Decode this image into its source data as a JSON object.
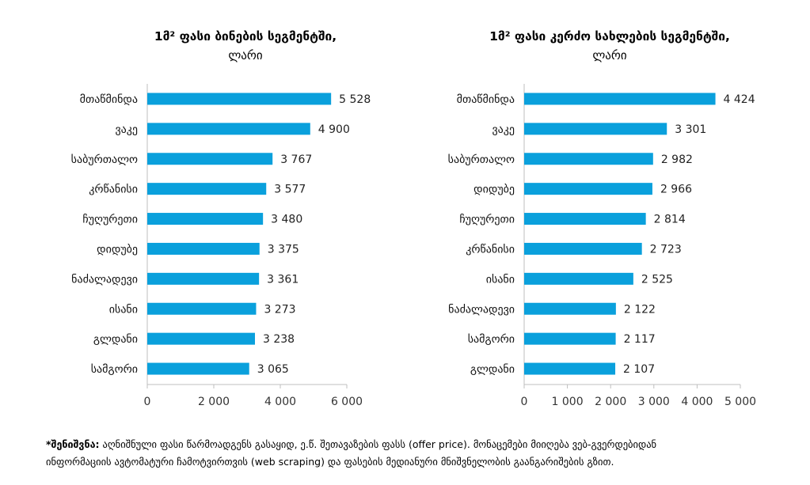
{
  "note": {
    "label": "*შენიშვნა:",
    "text_line1": "აღნიშნული ფასი წარმოადგენს გასაყიდ, ე.წ. შეთავაზების ფასს (offer price). მონაცემები მიიღება ვებ-გვერდებიდან",
    "text_line2": "ინფორმაციის ავტომატური ჩამოტვირთვის (web scraping) და ფასების მედიანური მნიშვნელობის გაანგარიშების გზით."
  },
  "chart_data": [
    {
      "type": "bar",
      "orientation": "horizontal",
      "title": "1მ² ფასი ბინების სეგმენტში,",
      "subtitle": "ლარი",
      "categories": [
        "მთაწმინდა",
        "ვაკე",
        "საბურთალო",
        "კრწანისი",
        "ჩუღურეთი",
        "დიდუბე",
        "ნაძალადევი",
        "ისანი",
        "გლდანი",
        "სამგორი"
      ],
      "values": [
        5528,
        4900,
        3767,
        3577,
        3480,
        3375,
        3361,
        3273,
        3238,
        3065
      ],
      "value_labels": [
        "5 528",
        "4 900",
        "3 767",
        "3 577",
        "3 480",
        "3 375",
        "3 361",
        "3 273",
        "3 238",
        "3 065"
      ],
      "xlim": [
        0,
        6000
      ],
      "ticks": [
        0,
        2000,
        4000,
        6000
      ],
      "tick_labels": [
        "0",
        "2 000",
        "4 000",
        "6 000"
      ],
      "bar_color": "#0aa0dc",
      "grid": false
    },
    {
      "type": "bar",
      "orientation": "horizontal",
      "title": "1მ² ფასი კერძო სახლების სეგმენტში,",
      "subtitle": "ლარი",
      "categories": [
        "მთაწმინდა",
        "ვაკე",
        "საბურთალო",
        "დიდუბე",
        "ჩუღურეთი",
        "კრწანისი",
        "ისანი",
        "ნაძალადევი",
        "სამგორი",
        "გლდანი"
      ],
      "values": [
        4424,
        3301,
        2982,
        2966,
        2814,
        2723,
        2525,
        2122,
        2117,
        2107
      ],
      "value_labels": [
        "4 424",
        "3 301",
        "2 982",
        "2 966",
        "2 814",
        "2 723",
        "2 525",
        "2 122",
        "2 117",
        "2 107"
      ],
      "xlim": [
        0,
        5000
      ],
      "ticks": [
        0,
        1000,
        2000,
        3000,
        4000,
        5000
      ],
      "tick_labels": [
        "0",
        "1 000",
        "2 000",
        "3 000",
        "4 000",
        "5 000"
      ],
      "bar_color": "#0aa0dc",
      "grid": false
    }
  ]
}
